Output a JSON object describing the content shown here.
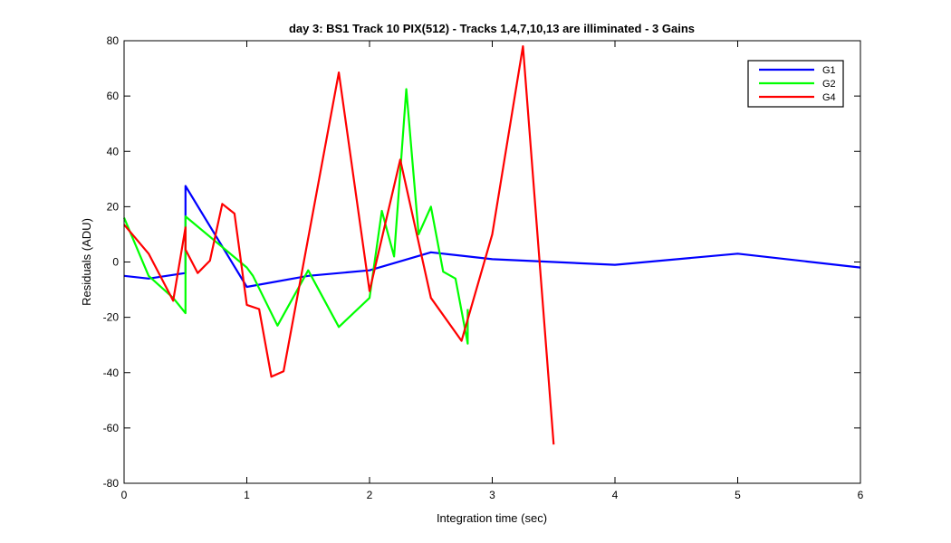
{
  "chart_data": {
    "type": "line",
    "title": "day 3: BS1  Track 10 PIX(512) - Tracks 1,4,7,10,13 are illiminated - 3 Gains",
    "xlabel": "Integration time (sec)",
    "ylabel": "Residuals (ADU)",
    "xlim": [
      0,
      6
    ],
    "ylim": [
      -80,
      80
    ],
    "xticks": [
      0,
      1,
      2,
      3,
      4,
      5,
      6
    ],
    "yticks": [
      -80,
      -60,
      -40,
      -20,
      0,
      20,
      40,
      60,
      80
    ],
    "grid": false,
    "legend_position": "top-right",
    "series": [
      {
        "name": "G1",
        "color": "#0000ff",
        "x": [
          0,
          0.2,
          0.5,
          0.5,
          1.0,
          1.5,
          2.0,
          2.5,
          3.0,
          4.0,
          5.0,
          6.0
        ],
        "y": [
          -5,
          -6,
          -4,
          27.5,
          -9,
          -5,
          -3,
          3.5,
          1,
          -1,
          3,
          -2
        ]
      },
      {
        "name": "G2",
        "color": "#00ff00",
        "x": [
          0,
          0.2,
          0.4,
          0.5,
          0.5,
          1.0,
          1.05,
          1.25,
          1.5,
          1.75,
          2.0,
          2.1,
          2.2,
          2.3,
          2.4,
          2.5,
          2.6,
          2.7,
          2.8,
          2.8
        ],
        "y": [
          16,
          -5,
          -13,
          -18.5,
          16.5,
          -2,
          -5,
          -23,
          -3,
          -23.5,
          -13,
          18.5,
          2,
          62.5,
          10,
          20,
          -3.5,
          -6,
          -29.5,
          -17
        ]
      },
      {
        "name": "G4",
        "color": "#ff0000",
        "x": [
          0,
          0.2,
          0.4,
          0.5,
          0.5,
          0.6,
          0.7,
          0.8,
          0.9,
          1.0,
          1.1,
          1.2,
          1.3,
          1.75,
          2.0,
          2.25,
          2.5,
          2.75,
          3.0,
          3.25,
          3.5
        ],
        "y": [
          13.5,
          3,
          -14,
          12.5,
          4.5,
          -4,
          0.5,
          21,
          17.5,
          -15.5,
          -17,
          -41.5,
          -39.5,
          68.5,
          -10.5,
          37,
          -13,
          -28.5,
          10,
          78,
          -66
        ]
      }
    ]
  }
}
